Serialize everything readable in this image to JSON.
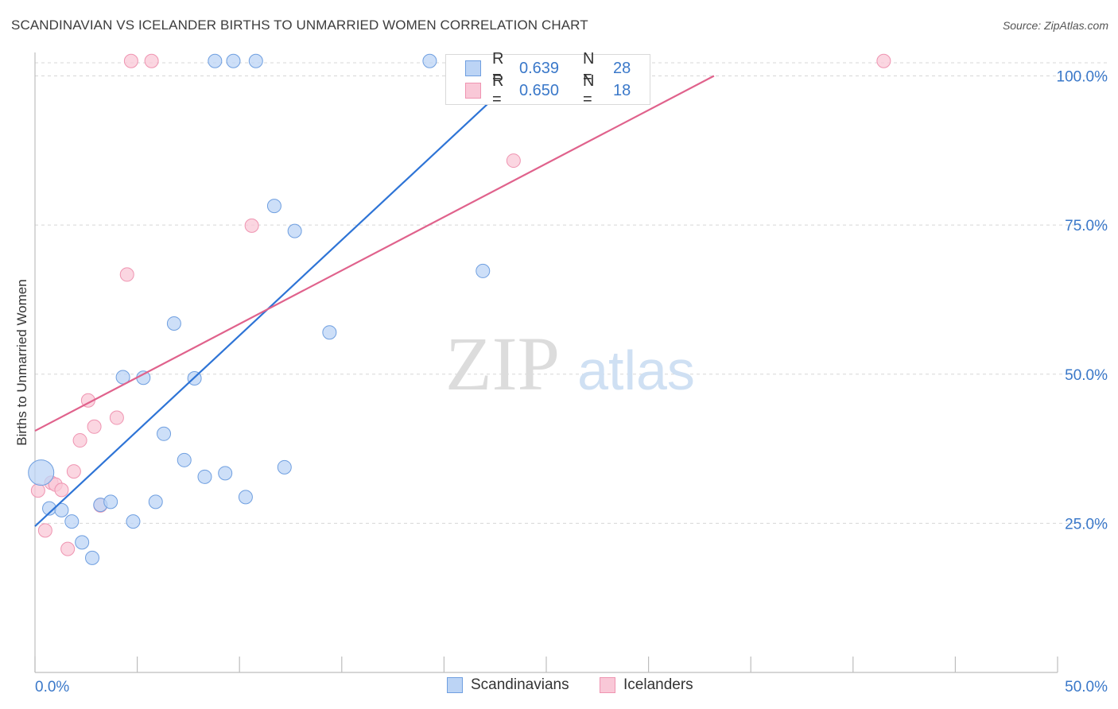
{
  "title": "SCANDINAVIAN VS ICELANDER BIRTHS TO UNMARRIED WOMEN CORRELATION CHART",
  "source": "Source: ZipAtlas.com",
  "watermark": {
    "zip": "ZIP",
    "atlas": "atlas"
  },
  "colors": {
    "blue_fill": "#bcd4f5",
    "blue_stroke": "#6f9fe0",
    "blue_line": "#2e74d6",
    "pink_fill": "#f9c8d7",
    "pink_stroke": "#ef94b1",
    "pink_line": "#e0628c",
    "tick_text": "#3a78c9",
    "grid": "#d7d7d7"
  },
  "legend": {
    "rows": [
      {
        "r_label": "R = ",
        "r_value": "0.639",
        "n_label": "N = ",
        "n_value": "28"
      },
      {
        "r_label": "R = ",
        "r_value": "0.650",
        "n_label": "N = ",
        "n_value": "18"
      }
    ]
  },
  "chart_data": {
    "type": "scatter",
    "title": "SCANDINAVIAN VS ICELANDER BIRTHS TO UNMARRIED WOMEN CORRELATION CHART",
    "xlabel": "",
    "ylabel": "Births to Unmarried Women",
    "xlim": [
      0,
      50
    ],
    "ylim": [
      0,
      102.5
    ],
    "x_tick_labels": [
      "0.0%",
      "50.0%"
    ],
    "y_ticks": [
      25,
      50,
      75,
      100
    ],
    "y_tick_labels": [
      "25.0%",
      "50.0%",
      "75.0%",
      "100.0%"
    ],
    "grid": true,
    "series": [
      {
        "name": "Scandinavians",
        "r": 0.639,
        "n": 28,
        "trendline": {
          "x": [
            0,
            23.6
          ],
          "y": [
            24.5,
            100
          ]
        },
        "points": [
          {
            "x": 0.3,
            "y": 33.5,
            "big": true
          },
          {
            "x": 0.7,
            "y": 27.5
          },
          {
            "x": 1.3,
            "y": 27.2
          },
          {
            "x": 1.8,
            "y": 25.3
          },
          {
            "x": 2.3,
            "y": 21.8
          },
          {
            "x": 2.8,
            "y": 19.2
          },
          {
            "x": 3.2,
            "y": 28.1
          },
          {
            "x": 3.7,
            "y": 28.6
          },
          {
            "x": 4.3,
            "y": 49.5
          },
          {
            "x": 4.8,
            "y": 25.3
          },
          {
            "x": 5.3,
            "y": 49.4
          },
          {
            "x": 5.9,
            "y": 28.6
          },
          {
            "x": 6.3,
            "y": 40.0
          },
          {
            "x": 6.8,
            "y": 58.5
          },
          {
            "x": 7.3,
            "y": 35.6
          },
          {
            "x": 7.8,
            "y": 49.3
          },
          {
            "x": 8.3,
            "y": 32.8
          },
          {
            "x": 8.8,
            "y": 102.5
          },
          {
            "x": 9.3,
            "y": 33.4
          },
          {
            "x": 9.7,
            "y": 102.5
          },
          {
            "x": 10.3,
            "y": 29.4
          },
          {
            "x": 10.8,
            "y": 102.5
          },
          {
            "x": 11.7,
            "y": 78.2
          },
          {
            "x": 12.2,
            "y": 34.4
          },
          {
            "x": 12.7,
            "y": 74.0
          },
          {
            "x": 14.4,
            "y": 57.0
          },
          {
            "x": 19.3,
            "y": 102.5
          },
          {
            "x": 21.9,
            "y": 67.3
          }
        ]
      },
      {
        "name": "Icelanders",
        "r": 0.65,
        "n": 18,
        "trendline": {
          "x": [
            0,
            33.2
          ],
          "y": [
            40.5,
            100
          ]
        },
        "points": [
          {
            "x": 0.15,
            "y": 30.5
          },
          {
            "x": 0.5,
            "y": 23.8
          },
          {
            "x": 0.8,
            "y": 31.8
          },
          {
            "x": 1.0,
            "y": 31.5
          },
          {
            "x": 1.3,
            "y": 30.6
          },
          {
            "x": 1.6,
            "y": 20.7
          },
          {
            "x": 1.9,
            "y": 33.7
          },
          {
            "x": 2.2,
            "y": 38.9
          },
          {
            "x": 2.6,
            "y": 45.6
          },
          {
            "x": 2.9,
            "y": 41.2
          },
          {
            "x": 3.2,
            "y": 28.0
          },
          {
            "x": 4.0,
            "y": 42.7
          },
          {
            "x": 4.5,
            "y": 66.7
          },
          {
            "x": 4.7,
            "y": 102.5
          },
          {
            "x": 5.7,
            "y": 102.5
          },
          {
            "x": 10.6,
            "y": 74.9
          },
          {
            "x": 23.4,
            "y": 85.8
          },
          {
            "x": 41.5,
            "y": 102.5
          }
        ]
      }
    ]
  }
}
